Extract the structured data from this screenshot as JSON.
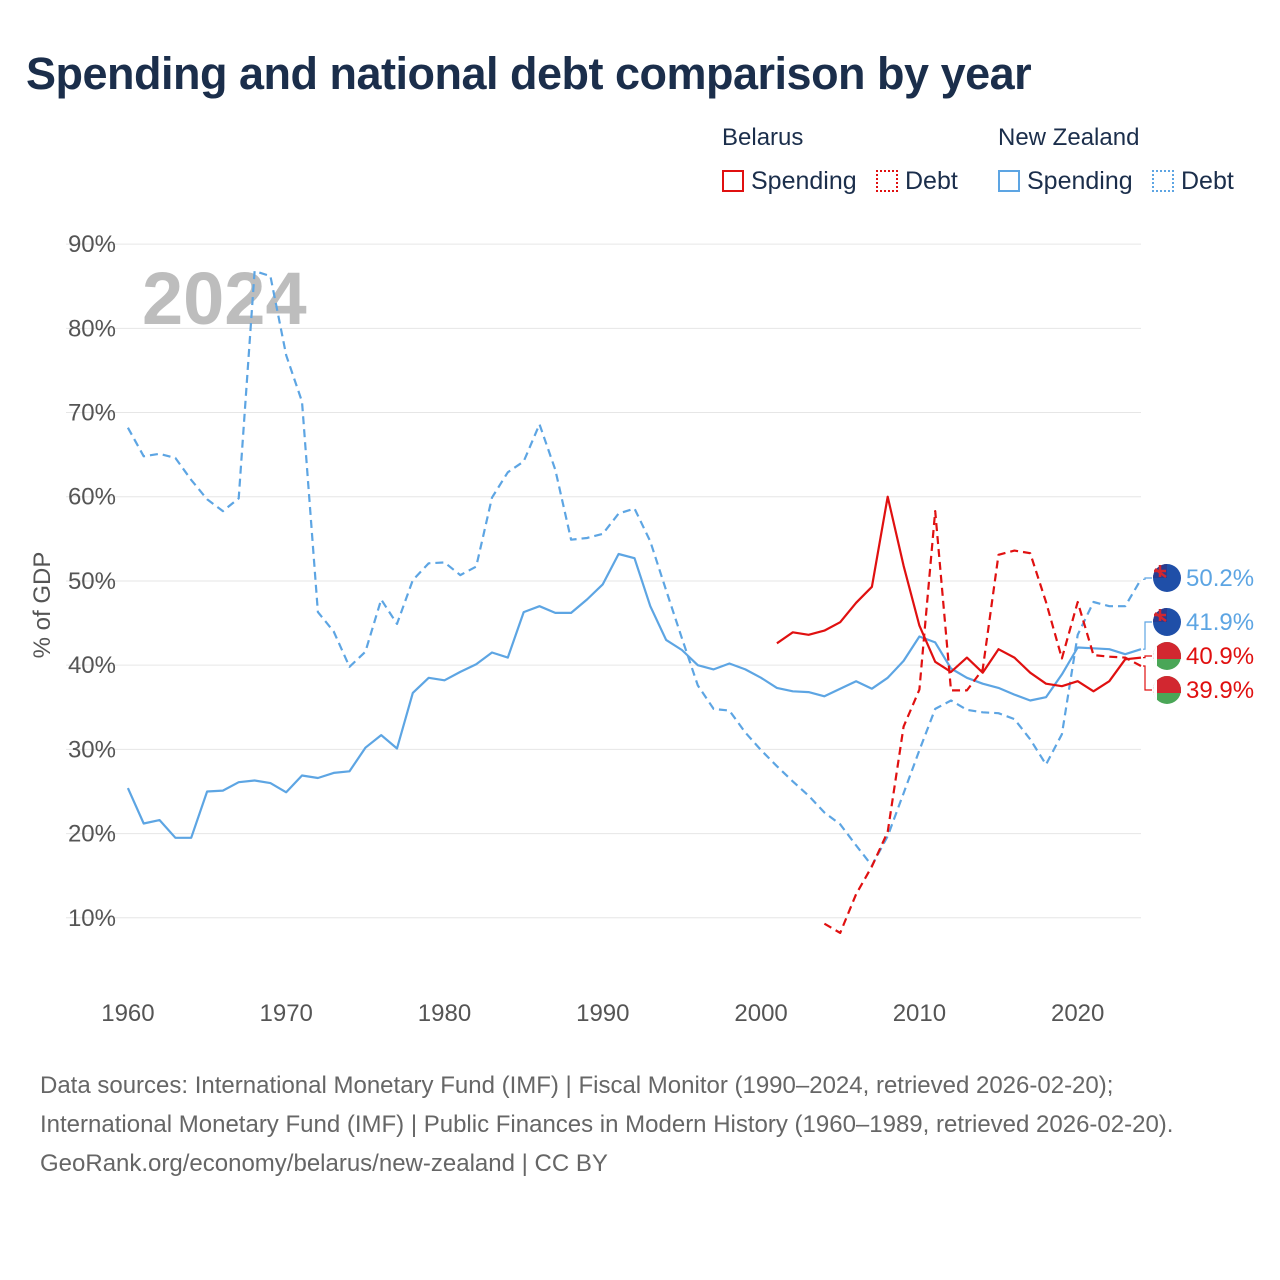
{
  "title": "Spending and national debt comparison by year",
  "legend": {
    "groups": [
      {
        "name": "Belarus",
        "items": [
          {
            "label": "Spending"
          },
          {
            "label": "Debt"
          }
        ]
      },
      {
        "name": "New Zealand",
        "items": [
          {
            "label": "Spending"
          },
          {
            "label": "Debt"
          }
        ]
      }
    ]
  },
  "colors": {
    "belarus": "#e01010",
    "new_zealand": "#5da5e3",
    "grid": "#e6e6e6",
    "axis_text": "#555555",
    "year_watermark": "#bdbdbd"
  },
  "year_label": "2024",
  "chart_data": {
    "type": "line",
    "ylabel": "% of GDP",
    "xlim": [
      1959.5,
      2024
    ],
    "ylim": [
      0,
      95
    ],
    "yticks": [
      10,
      20,
      30,
      40,
      50,
      60,
      70,
      80,
      90
    ],
    "ytick_labels": [
      "10%",
      "20%",
      "30%",
      "40%",
      "50%",
      "60%",
      "70%",
      "80%",
      "90%"
    ],
    "xticks": [
      1960,
      1970,
      1980,
      1990,
      2000,
      2010,
      2020
    ],
    "xtick_labels": [
      "1960",
      "1970",
      "1980",
      "1990",
      "2000",
      "2010",
      "2020"
    ],
    "series": [
      {
        "name": "New Zealand Debt",
        "country": "New Zealand",
        "kind": "debt",
        "dashed": true,
        "color": "#5da5e3",
        "x": [
          1960,
          1961,
          1962,
          1963,
          1964,
          1965,
          1966,
          1967,
          1968,
          1969,
          1970,
          1971,
          1972,
          1973,
          1974,
          1975,
          1976,
          1977,
          1978,
          1979,
          1980,
          1981,
          1982,
          1983,
          1984,
          1985,
          1986,
          1987,
          1988,
          1989,
          1990,
          1991,
          1992,
          1993,
          1994,
          1995,
          1996,
          1997,
          1998,
          1999,
          2000,
          2001,
          2002,
          2003,
          2004,
          2005,
          2006,
          2007,
          2008,
          2009,
          2010,
          2011,
          2012,
          2013,
          2014,
          2015,
          2016,
          2017,
          2018,
          2019,
          2020,
          2021,
          2022,
          2023,
          2024
        ],
        "values": [
          68.2,
          64.8,
          65.1,
          64.6,
          62.0,
          59.7,
          58.3,
          59.8,
          86.8,
          86.2,
          76.8,
          71.3,
          46.3,
          44.0,
          39.8,
          41.6,
          47.8,
          44.9,
          50.1,
          52.1,
          52.2,
          50.7,
          51.7,
          59.9,
          62.9,
          64.2,
          68.6,
          63.2,
          54.9,
          55.1,
          55.6,
          58.0,
          58.6,
          54.7,
          48.9,
          43.2,
          37.6,
          34.8,
          34.6,
          32.0,
          29.9,
          28.0,
          26.2,
          24.5,
          22.5,
          21.1,
          18.6,
          16.2,
          19.7,
          24.8,
          29.9,
          34.8,
          35.8,
          34.7,
          34.4,
          34.3,
          33.6,
          31.2,
          28.2,
          31.8,
          43.6,
          47.5,
          47.0,
          47.0,
          50.2
        ],
        "end_label": "50.2%"
      },
      {
        "name": "New Zealand Spending",
        "country": "New Zealand",
        "kind": "spending",
        "dashed": false,
        "color": "#5da5e3",
        "x": [
          1960,
          1961,
          1962,
          1963,
          1964,
          1965,
          1966,
          1967,
          1968,
          1969,
          1970,
          1971,
          1972,
          1973,
          1974,
          1975,
          1976,
          1977,
          1978,
          1979,
          1980,
          1981,
          1982,
          1983,
          1984,
          1985,
          1986,
          1987,
          1988,
          1989,
          1990,
          1991,
          1992,
          1993,
          1994,
          1995,
          1996,
          1997,
          1998,
          1999,
          2000,
          2001,
          2002,
          2003,
          2004,
          2005,
          2006,
          2007,
          2008,
          2009,
          2010,
          2011,
          2012,
          2013,
          2014,
          2015,
          2016,
          2017,
          2018,
          2019,
          2020,
          2021,
          2022,
          2023,
          2024
        ],
        "values": [
          25.4,
          21.2,
          21.6,
          19.5,
          19.5,
          25.0,
          25.1,
          26.1,
          26.3,
          26.0,
          24.9,
          26.9,
          26.6,
          27.2,
          27.4,
          30.2,
          31.7,
          30.1,
          36.7,
          38.5,
          38.2,
          39.2,
          40.1,
          41.5,
          40.9,
          46.3,
          47.0,
          46.2,
          46.2,
          47.8,
          49.6,
          53.2,
          52.7,
          47.0,
          43.0,
          41.8,
          40.0,
          39.5,
          40.2,
          39.5,
          38.5,
          37.3,
          36.9,
          36.8,
          36.3,
          37.2,
          38.1,
          37.2,
          38.5,
          40.5,
          43.4,
          42.7,
          39.6,
          38.5,
          37.8,
          37.3,
          36.5,
          35.8,
          36.2,
          38.9,
          42.1,
          42.0,
          41.9,
          41.3,
          41.9
        ],
        "end_label": "41.9%"
      },
      {
        "name": "Belarus Spending",
        "country": "Belarus",
        "kind": "spending",
        "dashed": false,
        "color": "#e01010",
        "x": [
          2001,
          2002,
          2003,
          2004,
          2005,
          2006,
          2007,
          2008,
          2009,
          2010,
          2011,
          2012,
          2013,
          2014,
          2015,
          2016,
          2017,
          2018,
          2019,
          2020,
          2021,
          2022,
          2023,
          2024
        ],
        "values": [
          42.6,
          43.9,
          43.6,
          44.1,
          45.1,
          47.4,
          49.3,
          60.0,
          51.8,
          44.7,
          40.4,
          39.2,
          40.9,
          39.1,
          41.9,
          40.9,
          39.1,
          37.8,
          37.5,
          38.1,
          36.9,
          38.1,
          40.7,
          40.9
        ],
        "end_label": "40.9%"
      },
      {
        "name": "Belarus Debt",
        "country": "Belarus",
        "kind": "debt",
        "dashed": true,
        "color": "#e01010",
        "x": [
          2004,
          2005,
          2006,
          2007,
          2008,
          2009,
          2010,
          2011,
          2012,
          2013,
          2014,
          2015,
          2016,
          2017,
          2018,
          2019,
          2020,
          2021,
          2022,
          2023,
          2024
        ],
        "values": [
          9.3,
          8.2,
          12.8,
          16.1,
          20.2,
          32.7,
          37.1,
          58.3,
          37.0,
          37.0,
          39.5,
          53.1,
          53.6,
          53.3,
          47.5,
          40.8,
          47.5,
          41.2,
          41.0,
          40.9,
          39.9
        ],
        "end_label": "39.9%"
      }
    ]
  },
  "footer": {
    "sources": "Data sources: International Monetary Fund (IMF) | Fiscal Monitor (1990–2024, retrieved 2026-02-20); International Monetary Fund (IMF) | Public Finances in Modern History (1960–1989, retrieved 2026-02-20).",
    "link": "GeoRank.org/economy/belarus/new-zealand | CC BY"
  }
}
